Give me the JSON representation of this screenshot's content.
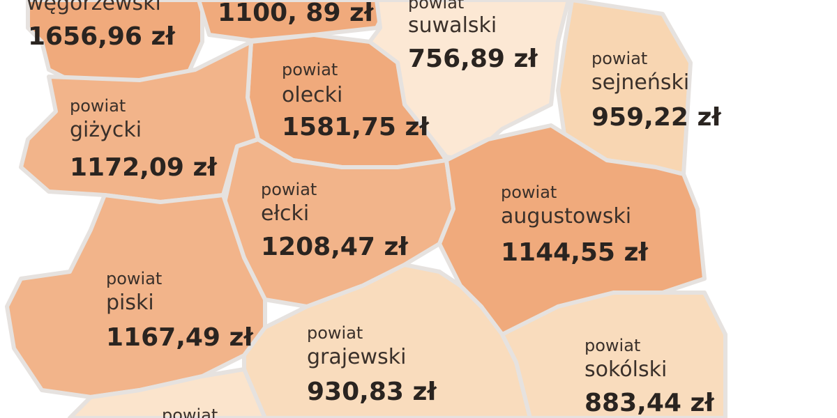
{
  "regions": [
    {
      "name": "węgorzewski",
      "amount": "1656,96 zł"
    },
    {
      "amount": "1100, 89 zł"
    },
    {
      "prefix": "powiat",
      "name": "suwalski",
      "amount": "756,89 zł"
    },
    {
      "prefix": "powiat",
      "name": "sejneński",
      "amount": "959,22 zł"
    },
    {
      "prefix": "powiat",
      "name": "olecki",
      "amount": "1581,75 zł"
    },
    {
      "prefix": "powiat",
      "name": "giżycki",
      "amount": "1172,09 zł"
    },
    {
      "prefix": "powiat",
      "name": "ełcki",
      "amount": "1208,47 zł"
    },
    {
      "prefix": "powiat",
      "name": "augustowski",
      "amount": "1144,55 zł"
    },
    {
      "prefix": "powiat",
      "name": "piski",
      "amount": "1167,49 zł"
    },
    {
      "prefix": "powiat",
      "name": "grajewski",
      "amount": "930,83 zł"
    },
    {
      "prefix": "powiat",
      "name": "sokólski",
      "amount": "883,44 zł"
    },
    {
      "prefix": "powiat"
    }
  ]
}
